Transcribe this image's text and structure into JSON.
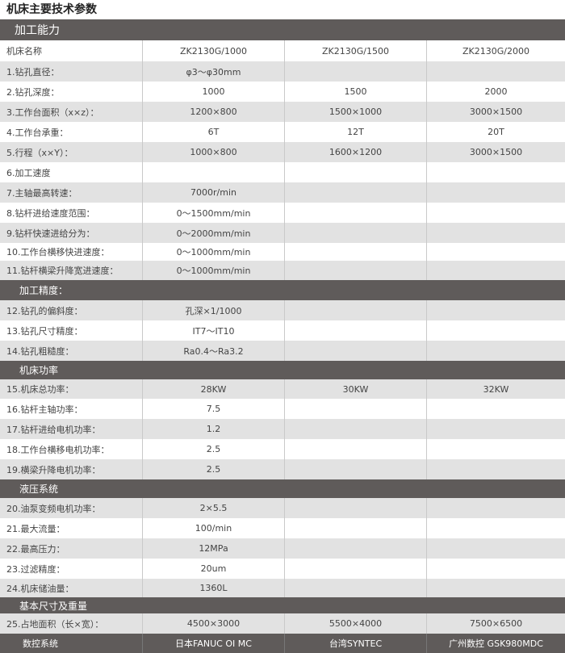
{
  "title": "机床主要技术参数",
  "sections": [
    {
      "name": "加工能力",
      "rows": [
        [
          "机床名称",
          "ZK2130G/1000",
          "ZK2130G/1500",
          "ZK2130G/2000"
        ],
        [
          "1.钻孔直径：",
          "φ3～φ30mm",
          "",
          ""
        ],
        [
          "2.钻孔深度：",
          "1000",
          "1500",
          "2000"
        ],
        [
          "3.工作台面积（x×z）：",
          "1200×800",
          "1500×1000",
          "3000×1500"
        ],
        [
          "4.工作台承重：",
          "6T",
          "12T",
          "20T"
        ],
        [
          "5.行程（x×Y）：",
          "1000×800",
          "1600×1200",
          "3000×1500"
        ],
        [
          "6.加工速度",
          "",
          "",
          ""
        ],
        [
          "7.主轴最高转速：",
          "7000r/min",
          "",
          ""
        ],
        [
          "8.钻杆进给速度范围：",
          "0～1500mm/min",
          "",
          ""
        ],
        [
          "9.钻杆快速进给分为：",
          "0～2000mm/min",
          "",
          ""
        ],
        [
          "10.工作台横移快进速度：",
          "0～1000mm/min",
          "",
          ""
        ],
        [
          "11.钻杆横梁升降宽进速度：",
          "0～1000mm/min",
          "",
          ""
        ]
      ]
    },
    {
      "name": "加工精度：",
      "rows": [
        [
          "12.钻孔的偏斜度：",
          "孔深×1/1000",
          "",
          ""
        ],
        [
          "13.钻孔尺寸精度：",
          "IT7～IT10",
          "",
          ""
        ],
        [
          "14.钻孔粗糙度：",
          "Ra0.4～Ra3.2",
          "",
          ""
        ]
      ]
    },
    {
      "name": "机床功率",
      "rows": [
        [
          "15.机床总功率：",
          "28KW",
          "30KW",
          "32KW"
        ],
        [
          "16.钻杆主轴功率：",
          "7.5",
          "",
          ""
        ],
        [
          "17.钻杆进给电机功率：",
          "1.2",
          "",
          ""
        ],
        [
          "18.工作台横移电机功率：",
          "2.5",
          "",
          ""
        ],
        [
          "19.横梁升降电机功率：",
          "2.5",
          "",
          ""
        ]
      ]
    },
    {
      "name": "液压系统",
      "rows": [
        [
          "20.油泵变频电机功率：",
          "2×5.5",
          "",
          ""
        ],
        [
          "21.最大流量：",
          "100/min",
          "",
          ""
        ],
        [
          "22.最高压力：",
          "12MPa",
          "",
          ""
        ],
        [
          "23.过滤精度：",
          "20um",
          "",
          ""
        ],
        [
          "24.机床储油量：",
          "1360L",
          "",
          ""
        ]
      ]
    },
    {
      "name": "基本尺寸及重量",
      "rows": [
        [
          "25.占地面积（长×宽）：",
          "4500×3000",
          "5500×4000",
          "7500×6500"
        ]
      ]
    }
  ],
  "control_system": [
    "数控系统",
    "日本FANUC  OI MC",
    "台湾SYNTEC",
    "广州数控  GSK980MDC"
  ],
  "colors": {
    "header": "#5f5b5a",
    "stripe": "#e2e2e2"
  }
}
